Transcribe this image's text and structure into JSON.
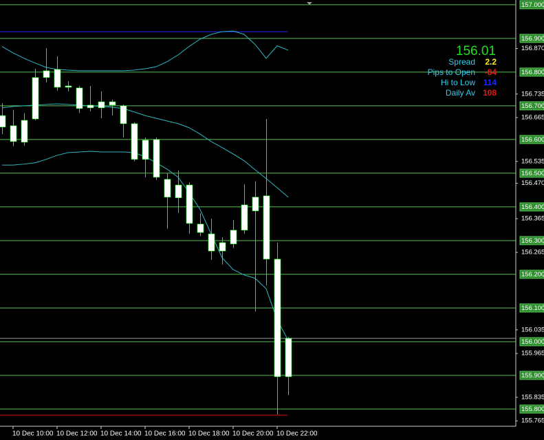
{
  "chart_data": {
    "type": "candlestick",
    "categories": [
      null,
      "10 Dec 10:00",
      null,
      null,
      null,
      "10 Dec 12:00",
      null,
      null,
      null,
      "10 Dec 14:00",
      null,
      null,
      null,
      "10 Dec 16:00",
      null,
      null,
      null,
      "10 Dec 18:00",
      null,
      null,
      null,
      "10 Dec 20:00",
      null,
      null,
      null,
      "10 Dec 22:00",
      null
    ],
    "open": [
      156.671,
      156.641,
      156.592,
      156.661,
      156.784,
      156.808,
      156.755,
      156.753,
      156.694,
      156.712,
      156.702,
      156.7,
      156.647,
      156.541,
      156.6,
      156.482,
      156.427,
      156.465,
      156.349,
      156.32,
      156.269,
      156.29,
      156.331,
      156.388,
      156.433,
      156.245,
      155.896
    ],
    "high": [
      156.708,
      156.688,
      156.678,
      156.81,
      156.871,
      156.847,
      156.773,
      156.759,
      156.759,
      156.743,
      156.718,
      156.704,
      156.651,
      156.606,
      156.606,
      156.5,
      156.508,
      156.473,
      156.382,
      156.365,
      156.31,
      156.361,
      156.467,
      156.476,
      156.661,
      156.294,
      156.014
    ],
    "low": [
      156.616,
      156.58,
      156.582,
      156.657,
      156.769,
      156.745,
      156.743,
      156.678,
      156.684,
      156.663,
      156.671,
      156.606,
      156.535,
      156.488,
      156.48,
      156.335,
      156.382,
      156.32,
      156.314,
      156.243,
      156.229,
      156.278,
      156.32,
      156.09,
      156.167,
      155.784,
      155.841
    ],
    "close": [
      156.637,
      156.594,
      156.657,
      156.784,
      156.804,
      156.755,
      156.759,
      156.692,
      156.702,
      156.694,
      156.712,
      156.647,
      156.541,
      156.598,
      156.488,
      156.429,
      156.465,
      156.351,
      156.324,
      156.269,
      156.294,
      156.331,
      156.406,
      156.429,
      156.245,
      155.896,
      156.01
    ],
    "candle_color": "#ffffff",
    "wick_color": "#00ff00",
    "bands": [
      {
        "color": "#2fb8c0",
        "values": [
          156.876,
          156.857,
          156.841,
          156.827,
          156.814,
          156.808,
          156.806,
          156.804,
          156.804,
          156.804,
          156.804,
          156.804,
          156.806,
          156.81,
          156.816,
          156.831,
          156.851,
          156.876,
          156.898,
          156.912,
          156.92,
          156.922,
          156.912,
          156.882,
          156.841,
          156.878,
          156.865
        ]
      },
      {
        "color": "#2fb8c0",
        "values": [
          156.694,
          156.698,
          156.7,
          156.702,
          156.704,
          156.706,
          156.704,
          156.702,
          156.7,
          156.698,
          156.696,
          156.692,
          156.682,
          156.671,
          156.663,
          156.655,
          156.647,
          156.635,
          156.616,
          156.594,
          156.576,
          156.557,
          156.537,
          156.51,
          156.484,
          156.457,
          156.429
        ]
      },
      {
        "color": "#2fb8c0",
        "values": [
          156.524,
          156.524,
          156.527,
          156.531,
          156.541,
          156.553,
          156.561,
          156.563,
          156.565,
          156.563,
          156.563,
          156.563,
          156.561,
          156.549,
          156.531,
          156.512,
          156.488,
          156.443,
          156.392,
          156.32,
          156.249,
          156.214,
          156.198,
          156.188,
          156.157,
          156.065,
          156.004
        ]
      }
    ],
    "levels": [
      {
        "value": 156.92,
        "color": "#1f2bff"
      },
      {
        "value": 155.782,
        "color": "#e01010"
      },
      {
        "value": 156.01,
        "color": "#9a9a9a"
      }
    ],
    "ylim": [
      155.749,
      157.014
    ],
    "yticks": [
      {
        "value": 157.0,
        "label": "157.000"
      },
      {
        "value": 156.9,
        "label": "156.900"
      },
      {
        "value": 156.8,
        "label": "156.800"
      },
      {
        "value": 156.7,
        "label": "156.700"
      },
      {
        "value": 156.6,
        "label": "156.600"
      },
      {
        "value": 156.5,
        "label": "156.500"
      },
      {
        "value": 156.4,
        "label": "156.400"
      },
      {
        "value": 156.3,
        "label": "156.300"
      },
      {
        "value": 156.2,
        "label": "156.200"
      },
      {
        "value": 156.1,
        "label": "156.100"
      },
      {
        "value": 156.0,
        "label": "156.000"
      },
      {
        "value": 155.9,
        "label": "155.900"
      },
      {
        "value": 155.8,
        "label": "155.800"
      }
    ],
    "yticks_minor": [
      {
        "value": 156.87,
        "label": "156.870"
      },
      {
        "value": 156.735,
        "label": "156.735"
      },
      {
        "value": 156.665,
        "label": "156.665"
      },
      {
        "value": 156.535,
        "label": "156.535"
      },
      {
        "value": 156.47,
        "label": "156.470"
      },
      {
        "value": 156.365,
        "label": "156.365"
      },
      {
        "value": 156.265,
        "label": "156.265"
      },
      {
        "value": 156.035,
        "label": "156.035"
      },
      {
        "value": 155.965,
        "label": "155.965"
      },
      {
        "value": 155.835,
        "label": "155.835"
      },
      {
        "value": 155.765,
        "label": "155.765"
      }
    ],
    "grid": true,
    "grid_color": "#5cbf5c"
  },
  "info": {
    "price": "156.01",
    "price_color": "#22dd22",
    "rows": [
      {
        "label": "Spread",
        "value": "2.2",
        "color": "#ffee22"
      },
      {
        "label": "Pips to Open",
        "value": "-84",
        "color": "#e01818"
      },
      {
        "label": "Hi to Low",
        "value": "114",
        "color": "#1a28ff"
      },
      {
        "label": "Daily Av",
        "value": "108",
        "color": "#e01818"
      }
    ],
    "label_color": "#33ccee"
  }
}
